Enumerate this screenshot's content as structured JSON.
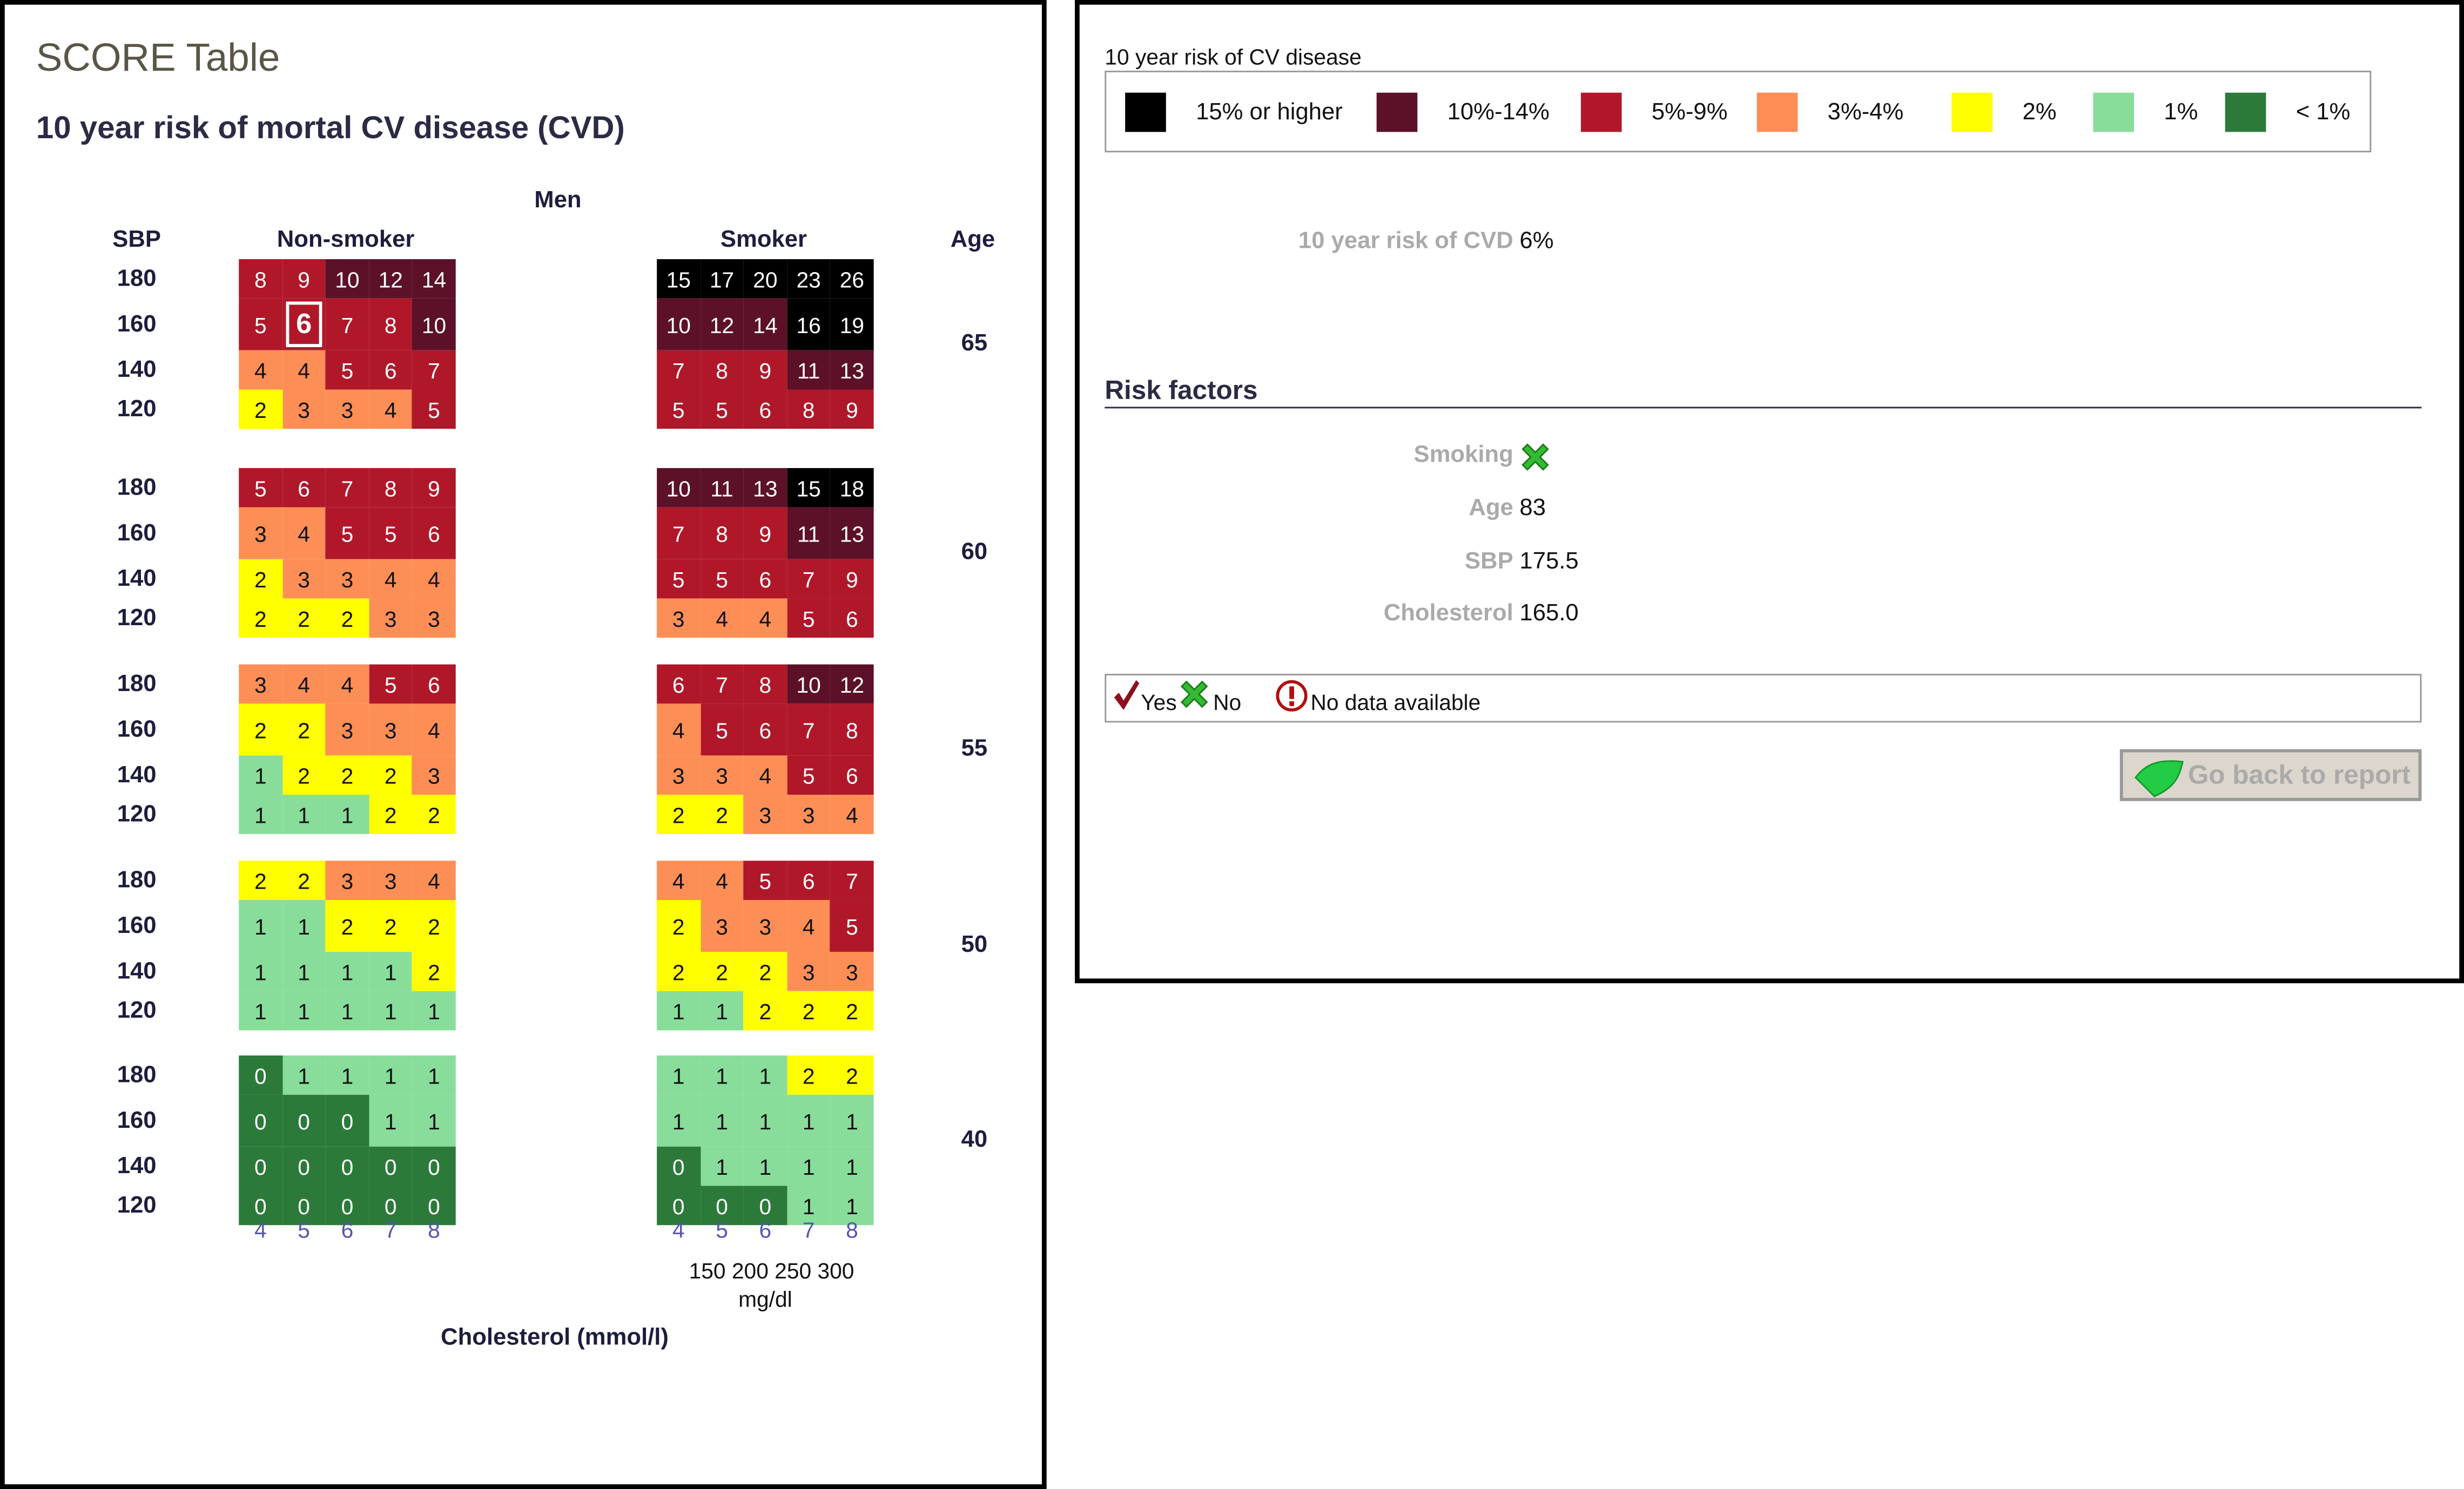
{
  "left": {
    "title": "SCORE Table",
    "subtitle": "10 year risk of mortal CV disease (CVD)",
    "gender": "Men",
    "sbp_header": "SBP",
    "nonsmoker_header": "Non-smoker",
    "smoker_header": "Smoker",
    "age_header": "Age",
    "sbp_values": [
      "180",
      "160",
      "140",
      "120"
    ],
    "cholesterol_mmol": [
      "4",
      "5",
      "6",
      "7",
      "8"
    ],
    "cholesterol_mgdl": [
      "150",
      "200",
      "250",
      "300"
    ],
    "mgdl_unit": "mg/dl",
    "cholesterol_axis_label": "Cholesterol (mmol/l)",
    "selected": {
      "age": "65",
      "smoker": false,
      "sbp": "160",
      "chol": "5"
    },
    "age_groups": [
      {
        "age": "65",
        "nonsmoker": [
          [
            8,
            9,
            10,
            12,
            14
          ],
          [
            5,
            6,
            7,
            8,
            10
          ],
          [
            4,
            4,
            5,
            6,
            7
          ],
          [
            2,
            3,
            3,
            4,
            5
          ]
        ],
        "smoker": [
          [
            15,
            17,
            20,
            23,
            26
          ],
          [
            10,
            12,
            14,
            16,
            19
          ],
          [
            7,
            8,
            9,
            11,
            13
          ],
          [
            5,
            5,
            6,
            8,
            9
          ]
        ]
      },
      {
        "age": "60",
        "nonsmoker": [
          [
            5,
            6,
            7,
            8,
            9
          ],
          [
            3,
            4,
            5,
            5,
            6
          ],
          [
            2,
            3,
            3,
            4,
            4
          ],
          [
            2,
            2,
            2,
            3,
            3
          ]
        ],
        "smoker": [
          [
            10,
            11,
            13,
            15,
            18
          ],
          [
            7,
            8,
            9,
            11,
            13
          ],
          [
            5,
            5,
            6,
            7,
            9
          ],
          [
            3,
            4,
            4,
            5,
            6
          ]
        ]
      },
      {
        "age": "55",
        "nonsmoker": [
          [
            3,
            4,
            4,
            5,
            6
          ],
          [
            2,
            2,
            3,
            3,
            4
          ],
          [
            1,
            2,
            2,
            2,
            3
          ],
          [
            1,
            1,
            1,
            2,
            2
          ]
        ],
        "smoker": [
          [
            6,
            7,
            8,
            10,
            12
          ],
          [
            4,
            5,
            6,
            7,
            8
          ],
          [
            3,
            3,
            4,
            5,
            6
          ],
          [
            2,
            2,
            3,
            3,
            4
          ]
        ]
      },
      {
        "age": "50",
        "nonsmoker": [
          [
            2,
            2,
            3,
            3,
            4
          ],
          [
            1,
            1,
            2,
            2,
            2
          ],
          [
            1,
            1,
            1,
            1,
            2
          ],
          [
            1,
            1,
            1,
            1,
            1
          ]
        ],
        "smoker": [
          [
            4,
            4,
            5,
            6,
            7
          ],
          [
            2,
            3,
            3,
            4,
            5
          ],
          [
            2,
            2,
            2,
            3,
            3
          ],
          [
            1,
            1,
            2,
            2,
            2
          ]
        ]
      },
      {
        "age": "40",
        "nonsmoker": [
          [
            0,
            1,
            1,
            1,
            1
          ],
          [
            0,
            0,
            0,
            1,
            1
          ],
          [
            0,
            0,
            0,
            0,
            0
          ],
          [
            0,
            0,
            0,
            0,
            0
          ]
        ],
        "smoker": [
          [
            1,
            1,
            1,
            2,
            2
          ],
          [
            1,
            1,
            1,
            1,
            1
          ],
          [
            0,
            1,
            1,
            1,
            1
          ],
          [
            0,
            0,
            0,
            1,
            1
          ]
        ]
      }
    ]
  },
  "colors": {
    "c15plus": "#000000",
    "c10to14": "#5c1128",
    "c5to9": "#b0182a",
    "c3to4": "#fd8e56",
    "c2": "#ffff00",
    "c1": "#88dd9a",
    "c0": "#2b7a3a"
  },
  "right": {
    "legend_title": "10 year risk of CV disease",
    "legend": [
      {
        "label": "15% or higher",
        "color": "#000000"
      },
      {
        "label": "10%-14%",
        "color": "#5c1128"
      },
      {
        "label": "5%-9%",
        "color": "#b0182a"
      },
      {
        "label": "3%-4%",
        "color": "#fd8e56"
      },
      {
        "label": "2%",
        "color": "#ffff00"
      },
      {
        "label": "1%",
        "color": "#88dd9a"
      },
      {
        "label": "< 1%",
        "color": "#2b7a3a"
      }
    ],
    "risk_label": "10 year risk of CVD",
    "risk_value": "6%",
    "risk_factors_title": "Risk factors",
    "factors": {
      "smoking_label": "Smoking",
      "smoking_icon": "x-icon",
      "age_label": "Age",
      "age_value": "83",
      "sbp_label": "SBP",
      "sbp_value": "175.5",
      "chol_label": "Cholesterol",
      "chol_value": "165.0"
    },
    "key": {
      "yes": "Yes",
      "no": "No",
      "nodata": "No data available"
    },
    "back_button": "Go back to report"
  }
}
